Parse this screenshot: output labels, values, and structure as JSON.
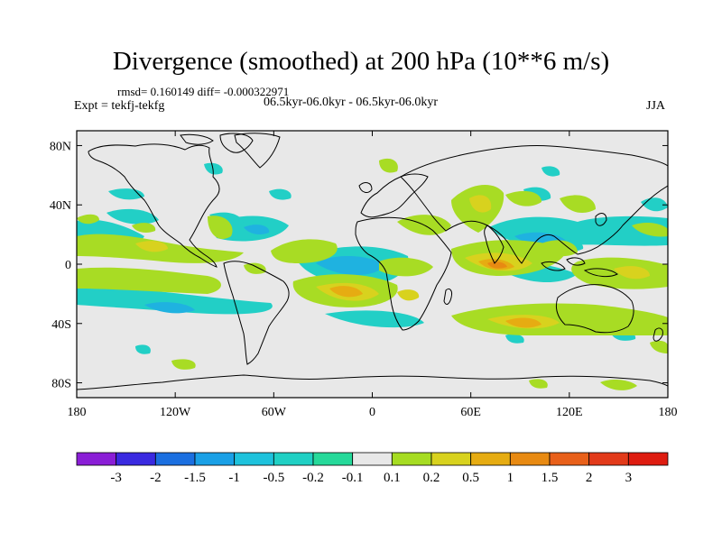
{
  "header": {
    "title": "Divergence (smoothed) at 200 hPa (10**6 m/s)",
    "stats": "rmsd= 0.160149 diff= -0.000322971",
    "experiment": "Expt = tekfj-tekfg",
    "period": "06.5kyr-06.0kyr - 06.5kyr-06.0kyr",
    "season": "JJA"
  },
  "axes": {
    "lat_labels": [
      "80N",
      "40N",
      "0",
      "40S",
      "80S"
    ],
    "lat_values": [
      80,
      40,
      0,
      -40,
      -80
    ],
    "lon_labels": [
      "180",
      "120W",
      "60W",
      "0",
      "60E",
      "120E",
      "180"
    ],
    "lon_values": [
      -180,
      -120,
      -60,
      0,
      60,
      120,
      180
    ]
  },
  "colorbar": {
    "labels": [
      "-3",
      "-2",
      "-1.5",
      "-1",
      "-0.5",
      "-0.2",
      "-0.1",
      "0.1",
      "0.2",
      "0.5",
      "1",
      "1.5",
      "2",
      "3"
    ],
    "colors": [
      "#8a1ed6",
      "#3a2ae0",
      "#1b6fe0",
      "#1aa0e6",
      "#1ec2dc",
      "#20d0c4",
      "#26d99a",
      "#e8e8e8",
      "#a6dc22",
      "#d8d21e",
      "#e6ac12",
      "#e88a12",
      "#e8601a",
      "#e23a1a",
      "#de1c10"
    ]
  },
  "colors": {
    "ocean": "#e8e8e8",
    "outline": "#000000"
  }
}
